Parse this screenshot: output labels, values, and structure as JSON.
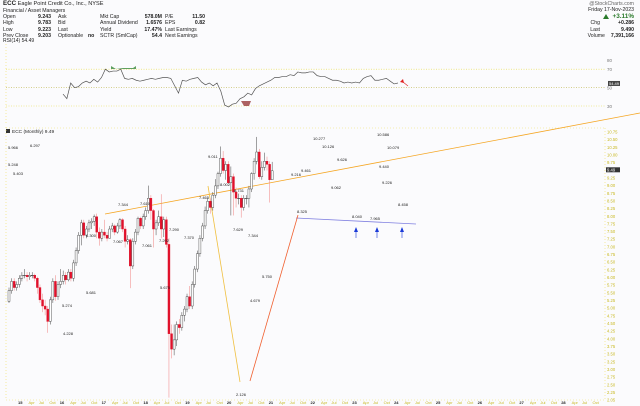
{
  "header": {
    "symbol": "ECC",
    "company": "Eagle Point Credit Co., Inc.",
    "exchange": "NYSE",
    "sector": "Financial / Asset Managers",
    "quote_left": [
      {
        "label": "Open",
        "value": "9.243"
      },
      {
        "label": "High",
        "value": "9.783"
      },
      {
        "label": "Low",
        "value": "9.223"
      },
      {
        "label": "Prev Close",
        "value": "9.203"
      }
    ],
    "quote_mid": [
      {
        "label": "Ask",
        "value": ""
      },
      {
        "label": "Bid",
        "value": ""
      },
      {
        "label": "Last",
        "value": ""
      },
      {
        "label": "Optionable",
        "value": "no"
      }
    ],
    "quote_fund": [
      {
        "label": "Mkt Cap",
        "value": "578.0M"
      },
      {
        "label": "Annual Dividend",
        "value": "1.6576"
      },
      {
        "label": "Yield",
        "value": "17.47%"
      },
      {
        "label": "SCTR (SmlCap)",
        "value": "54.4"
      }
    ],
    "quote_ratio": [
      {
        "label": "P/E",
        "value": "11.50"
      },
      {
        "label": "EPS",
        "value": "0.82"
      },
      {
        "label": "Last Earnings",
        "value": ""
      },
      {
        "label": "Next Earnings",
        "value": ""
      }
    ],
    "rsi_label": "RSI(14) 54.49",
    "watermark": "@StockCharts.com",
    "date": "Friday 17-Nov-2023",
    "change_pct": "+3.11%",
    "chg": {
      "label": "Chg",
      "value": "+0.286"
    },
    "last": {
      "label": "Last",
      "value": "9.490"
    },
    "volume": {
      "label": "Volume",
      "value": "7,391,166"
    }
  },
  "main_label": "ECC (Monthly) 9.49",
  "chart_data": [
    {
      "type": "line",
      "title": "RSI(14)",
      "current": 54.49,
      "ylim": [
        25,
        80
      ],
      "levels": [
        70,
        50,
        30
      ],
      "tick_labels": [
        "80",
        "70",
        "50",
        "30"
      ],
      "values": [
        43,
        38,
        55,
        50,
        51,
        55,
        57,
        55,
        59,
        56,
        61,
        70,
        67,
        68,
        68,
        70,
        60,
        59,
        60,
        58,
        57,
        58,
        59,
        60,
        59,
        60,
        61,
        61,
        60,
        52,
        44,
        58,
        57,
        59,
        60,
        61,
        56,
        53,
        55,
        52,
        55,
        46,
        31,
        29,
        32,
        33,
        38,
        40,
        44,
        42,
        49,
        52,
        54,
        56,
        58,
        61,
        61,
        62,
        62,
        64,
        63,
        67,
        66,
        66,
        67,
        67,
        63,
        62,
        62,
        60,
        58,
        58,
        57,
        55,
        56,
        55,
        56,
        55,
        60,
        62,
        63,
        58,
        58,
        59,
        60,
        57,
        54,
        55
      ]
    },
    {
      "type": "candlestick",
      "title": "ECC (Monthly)",
      "current": 9.49,
      "ylim": [
        2.05,
        10.75
      ],
      "y_tick_labels": [
        "10.75",
        "10.50",
        "10.25",
        "10.00",
        "9.75",
        "9.49",
        "9.25",
        "9.00",
        "8.75",
        "8.50",
        "8.25",
        "8.00",
        "7.75",
        "7.50",
        "7.25",
        "7.00",
        "6.75",
        "6.50",
        "6.25",
        "6.00",
        "5.75",
        "5.50",
        "5.25",
        "5.00",
        "4.75",
        "4.50",
        "4.25",
        "4.00",
        "3.75",
        "3.50",
        "3.25",
        "3.00",
        "2.75",
        "2.50",
        "2.25",
        "2.05"
      ],
      "x_tick_labels": [
        "15",
        "Apr",
        "Jul",
        "Oct",
        "16",
        "Apr",
        "Jul",
        "Oct",
        "17",
        "Apr",
        "Jul",
        "Oct",
        "18",
        "Apr",
        "Jul",
        "Oct",
        "19",
        "Apr",
        "Jul",
        "Oct",
        "20",
        "Apr",
        "Jul",
        "Oct",
        "21",
        "Apr",
        "Jul",
        "Oct",
        "22",
        "Apr",
        "Jul",
        "Oct",
        "23",
        "Apr",
        "Jul",
        "Oct",
        "24",
        "Apr",
        "Jul",
        "Oct",
        "25",
        "Apr",
        "Jul",
        "Oct",
        "26",
        "Apr",
        "Jul",
        "Oct",
        "27",
        "Apr",
        "Jul",
        "Oct",
        "28",
        "Apr",
        "Jul",
        "Oct"
      ],
      "annotations": [
        "5.248",
        "5.966",
        "5.403",
        "6.297",
        "4.228",
        "5.274",
        "5.681",
        "6.300",
        "7.344",
        "7.067",
        "7.610",
        "7.061",
        "7.292",
        "7.290",
        "7.370",
        "7.465",
        "9.011",
        "8.002",
        "7.629",
        "8.731",
        "7.344",
        "5.675",
        "2.126",
        "4.679",
        "5.750",
        "9.216",
        "8.325",
        "9.461",
        "10.277",
        "10.126",
        "9.626",
        "9.062",
        "8.040",
        "7.965",
        "9.440",
        "10.586",
        "10.079",
        "9.226",
        "8.458"
      ],
      "trendlines": [
        {
          "name": "upper-resistance",
          "color": "#f5a623",
          "from": [
            105,
            214
          ],
          "to": [
            640,
            113
          ]
        },
        {
          "name": "lower-support",
          "color": "#7f7fe0",
          "from": [
            296,
            218
          ],
          "to": [
            416,
            224
          ]
        },
        {
          "name": "covid-fall",
          "color": "#f0c040",
          "from": [
            208,
            186
          ],
          "to": [
            240,
            382
          ]
        },
        {
          "name": "recovery-rise",
          "color": "#f06030",
          "from": [
            250,
            381
          ],
          "to": [
            298,
            215
          ]
        }
      ],
      "support_arrows_x": [
        356,
        377,
        402
      ],
      "candles": [
        [
          5.25,
          5.6,
          5.7,
          5.2
        ],
        [
          5.6,
          5.9,
          6.0,
          5.5
        ],
        [
          5.9,
          5.7,
          6.0,
          5.6
        ],
        [
          5.7,
          5.8,
          5.9,
          5.6
        ],
        [
          5.8,
          6.0,
          6.1,
          5.7
        ],
        [
          6.0,
          6.1,
          6.2,
          5.9
        ],
        [
          6.1,
          6.1,
          6.3,
          6.0
        ],
        [
          6.1,
          6.05,
          6.2,
          5.9
        ],
        [
          6.05,
          6.1,
          6.2,
          5.95
        ],
        [
          6.1,
          6.1,
          6.2,
          6.0
        ],
        [
          6.1,
          6.0,
          6.15,
          5.9
        ],
        [
          6.0,
          5.7,
          6.05,
          5.5
        ],
        [
          5.7,
          5.3,
          5.8,
          5.2
        ],
        [
          5.3,
          5.1,
          5.5,
          4.9
        ],
        [
          5.1,
          5.0,
          5.3,
          4.8
        ],
        [
          5.0,
          4.6,
          5.1,
          4.23
        ],
        [
          4.6,
          5.3,
          5.4,
          4.5
        ],
        [
          5.3,
          5.9,
          6.0,
          5.2
        ],
        [
          5.9,
          5.4,
          6.1,
          5.27
        ],
        [
          5.4,
          5.8,
          5.9,
          5.3
        ],
        [
          5.8,
          5.9,
          6.3,
          5.68
        ],
        [
          5.9,
          6.1,
          6.25,
          5.8
        ],
        [
          6.1,
          5.95,
          6.2,
          5.8
        ],
        [
          5.95,
          6.2,
          6.3,
          5.9
        ],
        [
          6.2,
          6.0,
          6.3,
          5.9
        ],
        [
          6.0,
          6.5,
          6.6,
          5.9
        ],
        [
          6.5,
          6.9,
          7.0,
          6.4
        ],
        [
          6.9,
          7.4,
          7.5,
          6.8
        ],
        [
          7.4,
          7.8,
          7.9,
          7.07
        ],
        [
          7.8,
          7.4,
          7.9,
          7.3
        ],
        [
          7.4,
          7.6,
          7.7,
          7.3
        ],
        [
          7.6,
          7.8,
          7.9,
          7.5
        ],
        [
          7.8,
          7.85,
          7.95,
          7.6
        ],
        [
          7.85,
          8.0,
          8.07,
          7.7
        ],
        [
          8.0,
          7.5,
          8.1,
          7.3
        ],
        [
          7.5,
          7.3,
          7.65,
          7.06
        ],
        [
          7.3,
          7.5,
          7.6,
          7.2
        ],
        [
          7.5,
          7.4,
          7.9,
          7.3
        ],
        [
          7.4,
          7.3,
          7.5,
          7.2
        ],
        [
          7.3,
          7.6,
          7.7,
          7.29
        ],
        [
          7.6,
          7.7,
          7.8,
          7.5
        ],
        [
          7.7,
          7.5,
          7.75,
          7.4
        ],
        [
          7.5,
          7.7,
          7.8,
          7.45
        ],
        [
          7.7,
          7.9,
          7.95,
          7.6
        ],
        [
          7.9,
          7.6,
          7.95,
          7.5
        ],
        [
          7.6,
          7.2,
          7.7,
          7.0
        ],
        [
          7.2,
          7.25,
          7.4,
          7.1
        ],
        [
          7.25,
          6.4,
          7.3,
          5.68
        ],
        [
          6.4,
          7.2,
          7.3,
          6.3
        ],
        [
          7.2,
          7.5,
          7.6,
          7.1
        ],
        [
          7.5,
          7.95,
          8.0,
          7.4
        ],
        [
          7.95,
          7.7,
          8.0,
          7.6
        ],
        [
          7.7,
          8.0,
          8.1,
          7.6
        ],
        [
          8.0,
          8.2,
          8.3,
          7.9
        ],
        [
          8.2,
          8.6,
          9.01,
          8.1
        ],
        [
          8.6,
          8.2,
          8.7,
          7.9
        ],
        [
          8.2,
          7.6,
          8.25,
          7.0
        ],
        [
          7.6,
          7.8,
          7.9,
          7.4
        ],
        [
          7.8,
          8.0,
          8.2,
          7.7
        ],
        [
          8.0,
          7.6,
          8.73,
          7.3
        ],
        [
          7.6,
          7.9,
          8.0,
          7.34
        ],
        [
          7.9,
          7.1,
          8.0,
          7.0
        ],
        [
          7.1,
          4.2,
          7.3,
          2.126
        ],
        [
          4.2,
          3.7,
          4.5,
          3.4
        ],
        [
          3.7,
          4.0,
          4.5,
          3.5
        ],
        [
          4.0,
          4.5,
          4.6,
          3.8
        ],
        [
          4.5,
          4.4,
          4.68,
          4.2
        ],
        [
          4.4,
          4.8,
          4.9,
          4.3
        ],
        [
          4.8,
          5.0,
          5.1,
          4.6
        ],
        [
          5.0,
          5.4,
          5.5,
          4.9
        ],
        [
          5.4,
          5.1,
          5.75,
          5.0
        ],
        [
          5.1,
          5.8,
          5.9,
          5.0
        ],
        [
          5.8,
          6.3,
          6.4,
          5.7
        ],
        [
          6.3,
          6.8,
          6.9,
          6.2
        ],
        [
          6.8,
          7.3,
          7.4,
          6.7
        ],
        [
          7.3,
          7.7,
          7.8,
          7.2
        ],
        [
          7.7,
          8.2,
          8.33,
          7.6
        ],
        [
          8.2,
          8.5,
          8.6,
          8.1
        ],
        [
          8.5,
          8.3,
          8.6,
          8.1
        ],
        [
          8.3,
          8.7,
          8.8,
          8.2
        ],
        [
          8.7,
          9.0,
          9.22,
          8.6
        ],
        [
          9.0,
          9.4,
          9.46,
          8.9
        ],
        [
          9.4,
          9.9,
          10.28,
          9.3
        ],
        [
          9.9,
          9.5,
          10.13,
          9.4
        ],
        [
          9.5,
          9.7,
          9.8,
          9.2
        ],
        [
          9.7,
          9.1,
          9.8,
          9.06
        ],
        [
          9.1,
          9.3,
          9.63,
          8.04
        ],
        [
          9.3,
          8.8,
          9.4,
          8.04
        ],
        [
          8.8,
          8.6,
          8.95,
          8.3
        ],
        [
          8.6,
          8.6,
          8.75,
          8.4
        ],
        [
          8.6,
          8.3,
          8.7,
          7.97
        ],
        [
          8.3,
          8.6,
          8.7,
          8.2
        ],
        [
          8.6,
          8.6,
          8.7,
          8.4
        ],
        [
          8.6,
          8.9,
          9.0,
          8.3
        ],
        [
          8.9,
          9.4,
          9.44,
          8.8
        ],
        [
          9.4,
          9.8,
          9.9,
          9.2
        ],
        [
          9.8,
          10.1,
          10.59,
          9.7
        ],
        [
          10.1,
          9.3,
          10.2,
          9.23
        ],
        [
          9.3,
          9.6,
          9.8,
          9.2
        ],
        [
          9.6,
          9.8,
          10.08,
          9.5
        ],
        [
          9.8,
          9.7,
          9.95,
          9.5
        ],
        [
          9.7,
          9.2,
          9.8,
          8.46
        ],
        [
          9.2,
          9.49,
          9.78,
          9.22
        ]
      ]
    }
  ]
}
